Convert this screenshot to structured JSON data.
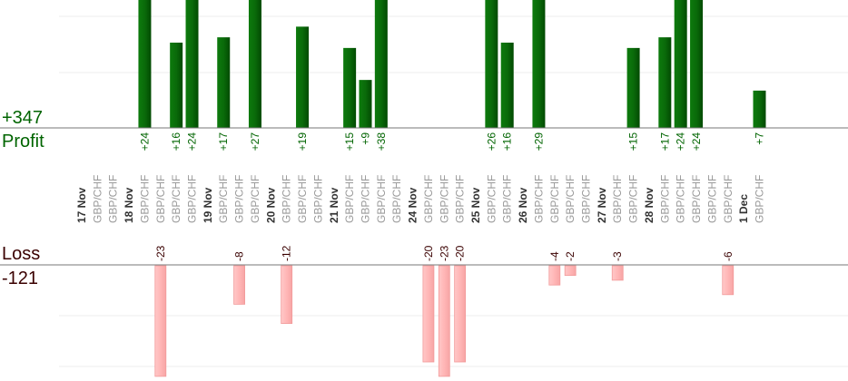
{
  "summary": {
    "profit_total": "+347",
    "profit_label": "Profit",
    "loss_label": "Loss",
    "loss_total": "-121"
  },
  "colors": {
    "profit_bar": "#0a6b0a",
    "loss_bar": "#ffb6b6",
    "profit_text": "#006400",
    "loss_text": "#3a0000"
  },
  "chart_data": {
    "type": "bar",
    "categories": [
      "17 Nov",
      "GBP/CHF",
      "GBP/CHF",
      "18 Nov",
      "GBP/CHF",
      "GBP/CHF",
      "GBP/CHF",
      "GBP/CHF",
      "19 Nov",
      "GBP/CHF",
      "GBP/CHF",
      "GBP/CHF",
      "20 Nov",
      "GBP/CHF",
      "GBP/CHF",
      "GBP/CHF",
      "21 Nov",
      "GBP/CHF",
      "GBP/CHF",
      "GBP/CHF",
      "GBP/CHF",
      "24 Nov",
      "GBP/CHF",
      "GBP/CHF",
      "GBP/CHF",
      "25 Nov",
      "GBP/CHF",
      "GBP/CHF",
      "26 Nov",
      "GBP/CHF",
      "GBP/CHF",
      "GBP/CHF",
      "GBP/CHF",
      "27 Nov",
      "GBP/CHF",
      "GBP/CHF",
      "28 Nov",
      "GBP/CHF",
      "GBP/CHF",
      "GBP/CHF",
      "GBP/CHF",
      "GBP/CHF",
      "1 Dec",
      "GBP/CHF"
    ],
    "is_date": [
      true,
      false,
      false,
      true,
      false,
      false,
      false,
      false,
      true,
      false,
      false,
      false,
      true,
      false,
      false,
      false,
      true,
      false,
      false,
      false,
      false,
      true,
      false,
      false,
      false,
      true,
      false,
      false,
      true,
      false,
      false,
      false,
      false,
      true,
      false,
      false,
      true,
      false,
      false,
      false,
      false,
      false,
      true,
      false
    ],
    "series": [
      {
        "name": "Profit",
        "values": [
          null,
          null,
          null,
          null,
          24,
          null,
          16,
          24,
          null,
          17,
          null,
          27,
          null,
          null,
          19,
          null,
          null,
          15,
          9,
          38,
          null,
          null,
          null,
          null,
          null,
          null,
          26,
          16,
          null,
          29,
          null,
          null,
          null,
          null,
          null,
          15,
          null,
          17,
          24,
          24,
          null,
          null,
          null,
          7
        ],
        "labels": [
          null,
          null,
          null,
          null,
          "+24",
          null,
          "+16",
          "+24",
          null,
          "+17",
          null,
          "+27",
          null,
          null,
          "+19",
          null,
          null,
          "+15",
          "+9",
          "+38",
          null,
          null,
          null,
          null,
          null,
          null,
          "+26",
          "+16",
          null,
          "+29",
          null,
          null,
          null,
          null,
          null,
          "+15",
          null,
          "+17",
          "+24",
          "+24",
          null,
          null,
          null,
          "+7"
        ]
      },
      {
        "name": "Loss",
        "values": [
          null,
          null,
          null,
          null,
          null,
          -23,
          null,
          null,
          null,
          null,
          -8,
          null,
          null,
          -12,
          null,
          null,
          null,
          null,
          null,
          null,
          null,
          null,
          -20,
          -23,
          -20,
          null,
          null,
          null,
          null,
          null,
          -4,
          -2,
          null,
          null,
          -3,
          null,
          null,
          null,
          null,
          null,
          null,
          -6,
          null,
          null
        ],
        "labels": [
          null,
          null,
          null,
          null,
          null,
          "-23",
          null,
          null,
          null,
          null,
          "-8",
          null,
          null,
          "-12",
          null,
          null,
          null,
          null,
          null,
          null,
          null,
          null,
          "-20",
          "-23",
          "-20",
          null,
          null,
          null,
          null,
          null,
          "-4",
          "-2",
          null,
          null,
          "-3",
          null,
          null,
          null,
          null,
          null,
          null,
          "-6",
          null,
          null
        ]
      }
    ],
    "profit_ylim": [
      0,
      24
    ],
    "loss_ylim": [
      -21,
      0
    ],
    "grid": true
  }
}
